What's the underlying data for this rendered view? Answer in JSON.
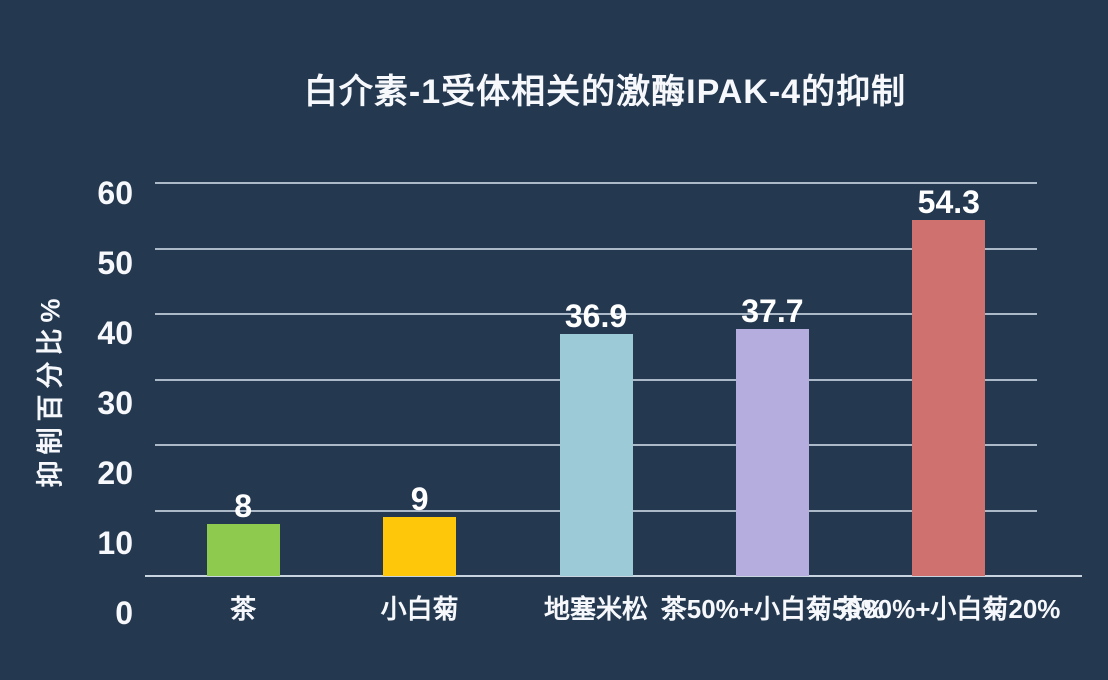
{
  "chart_data": {
    "type": "bar",
    "title": "白介素-1受体相关的激酶IPAK-4的抑制",
    "ylabel": "抑制百分比%",
    "xlabel": "",
    "categories": [
      "茶",
      "小白菊",
      "地塞米松",
      "茶50%+小白菊50%",
      "茶80%+小白菊20%"
    ],
    "values": [
      8,
      9,
      36.9,
      37.7,
      54.3
    ],
    "value_labels": [
      "8",
      "9",
      "36.9",
      "37.7",
      "54.3"
    ],
    "bar_colors": [
      "#8dca4d",
      "#fec70a",
      "#9ccad6",
      "#b5addd",
      "#ce716f"
    ],
    "yticks": [
      0,
      10,
      20,
      30,
      40,
      50,
      60
    ],
    "ylim": [
      0,
      60
    ],
    "grid": true,
    "legend": false
  },
  "style": {
    "background": "#243850",
    "text_color": "#f6f8fb",
    "gridline_color": "#c3d0de"
  }
}
